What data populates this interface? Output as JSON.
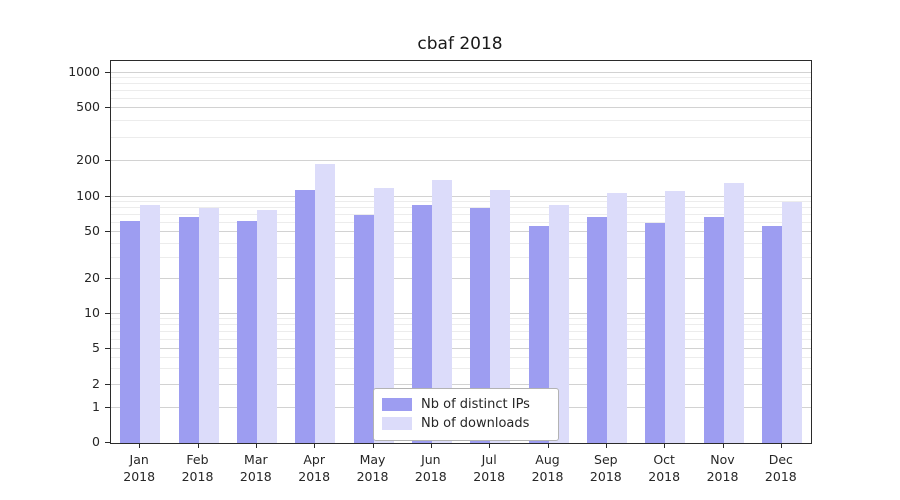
{
  "chart_data": {
    "type": "bar",
    "title": "cbaf 2018",
    "categories": [
      "Jan",
      "Feb",
      "Mar",
      "Apr",
      "May",
      "Jun",
      "Jul",
      "Aug",
      "Sep",
      "Oct",
      "Nov",
      "Dec"
    ],
    "x_year": "2018",
    "series": [
      {
        "name": "Nb of distinct IPs",
        "color": "#9d9df1",
        "values": [
          62,
          68,
          62,
          115,
          70,
          85,
          80,
          57,
          68,
          60,
          68,
          57
        ]
      },
      {
        "name": "Nb of downloads",
        "color": "#dcdcfa",
        "values": [
          85,
          80,
          78,
          190,
          120,
          140,
          115,
          85,
          108,
          112,
          130,
          90
        ]
      }
    ],
    "y_axis": {
      "scale": "symlog",
      "ticks": [
        0,
        1,
        2,
        5,
        10,
        20,
        50,
        100,
        200,
        500,
        1000
      ],
      "minor_ticks": [
        3,
        4,
        6,
        7,
        8,
        9,
        30,
        40,
        60,
        70,
        80,
        90,
        300,
        400,
        600,
        700,
        800,
        900
      ]
    },
    "legend": {
      "position": "bottom-center"
    },
    "grid": true
  }
}
